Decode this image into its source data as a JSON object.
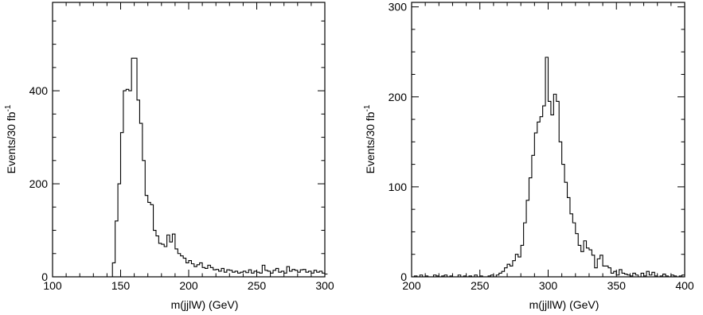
{
  "chart_data": [
    {
      "type": "histogram",
      "xlabel": "m(jjlW) (GeV)",
      "ylabel": "Events/30 fb",
      "ylabel_sup": "-1",
      "xlim": [
        100,
        300
      ],
      "ylim": [
        0,
        590
      ],
      "xticks": [
        100,
        150,
        200,
        250,
        300
      ],
      "yticks": [
        0,
        200,
        400
      ],
      "xticks_minor_step": 10,
      "yticks_minor_step": 50,
      "bin_edges_start": 142,
      "bin_width": 2,
      "values": [
        0,
        30,
        120,
        200,
        310,
        400,
        403,
        400,
        470,
        470,
        380,
        330,
        250,
        175,
        160,
        155,
        100,
        88,
        72,
        70,
        65,
        90,
        75,
        92,
        60,
        50,
        45,
        40,
        30,
        35,
        28,
        22,
        26,
        30,
        20,
        18,
        25,
        20,
        15,
        16,
        12,
        18,
        10,
        15,
        14,
        10,
        12,
        8,
        10,
        12,
        9,
        15,
        8,
        12,
        10,
        8,
        25,
        14,
        12,
        8,
        14,
        18,
        10,
        12,
        8,
        22,
        12,
        16,
        14,
        10,
        15,
        16,
        10,
        12,
        8,
        14,
        10,
        12,
        8,
        6
      ]
    },
    {
      "type": "histogram",
      "xlabel": "m(jjllW) (GeV)",
      "ylabel": "Events/30 fb",
      "ylabel_sup": "-1",
      "xlim": [
        200,
        400
      ],
      "ylim": [
        0,
        305
      ],
      "xticks": [
        200,
        250,
        300,
        350,
        400
      ],
      "yticks": [
        0,
        100,
        200,
        300
      ],
      "xticks_minor_step": 10,
      "yticks_minor_step": 25,
      "bin_edges_start": 200,
      "bin_width": 2,
      "values": [
        0,
        1,
        0,
        2,
        0,
        1,
        0,
        0,
        2,
        1,
        0,
        1,
        2,
        0,
        1,
        0,
        0,
        2,
        0,
        1,
        0,
        1,
        0,
        2,
        0,
        1,
        0,
        0,
        1,
        2,
        0,
        2,
        4,
        6,
        10,
        14,
        12,
        18,
        25,
        22,
        35,
        60,
        85,
        110,
        135,
        160,
        172,
        178,
        190,
        244,
        195,
        180,
        203,
        195,
        150,
        125,
        105,
        88,
        70,
        60,
        48,
        35,
        28,
        40,
        32,
        30,
        24,
        10,
        20,
        24,
        12,
        12,
        10,
        4,
        6,
        2,
        8,
        4,
        3,
        2,
        1,
        4,
        2,
        0,
        4,
        1,
        6,
        2,
        5,
        1,
        0,
        1,
        3,
        1,
        0,
        2,
        1,
        0,
        1,
        2
      ]
    }
  ]
}
